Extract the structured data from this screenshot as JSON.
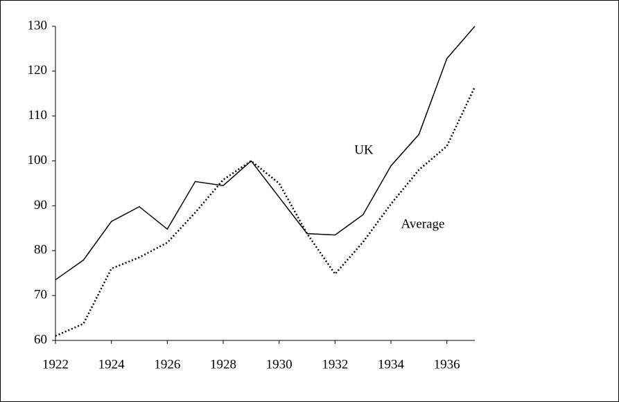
{
  "chart_data": {
    "type": "line",
    "x": [
      1922,
      1923,
      1924,
      1925,
      1926,
      1927,
      1928,
      1929,
      1930,
      1931,
      1932,
      1933,
      1934,
      1935,
      1936,
      1937
    ],
    "series": [
      {
        "name": "UK",
        "color": "#000000",
        "dash": "solid",
        "values": [
          73.5,
          77.9,
          86.5,
          89.8,
          84.8,
          95.4,
          94.5,
          100,
          91.9,
          83.8,
          83.5,
          88,
          98.9,
          105.9,
          122.8,
          130
        ]
      },
      {
        "name": "Average",
        "color": "#000000",
        "dash": "dotted",
        "values": [
          61,
          63.7,
          76,
          78.5,
          81.8,
          88.5,
          95.8,
          100,
          95,
          83.8,
          74.8,
          81.9,
          90.4,
          98,
          103.3,
          116.5
        ]
      }
    ],
    "xlim": [
      1922,
      1937
    ],
    "xticks": [
      1922,
      1924,
      1926,
      1928,
      1930,
      1932,
      1934,
      1936
    ],
    "ylim": [
      60,
      130
    ],
    "yticks": [
      60,
      70,
      80,
      90,
      100,
      110,
      120,
      130
    ],
    "grid": false
  }
}
